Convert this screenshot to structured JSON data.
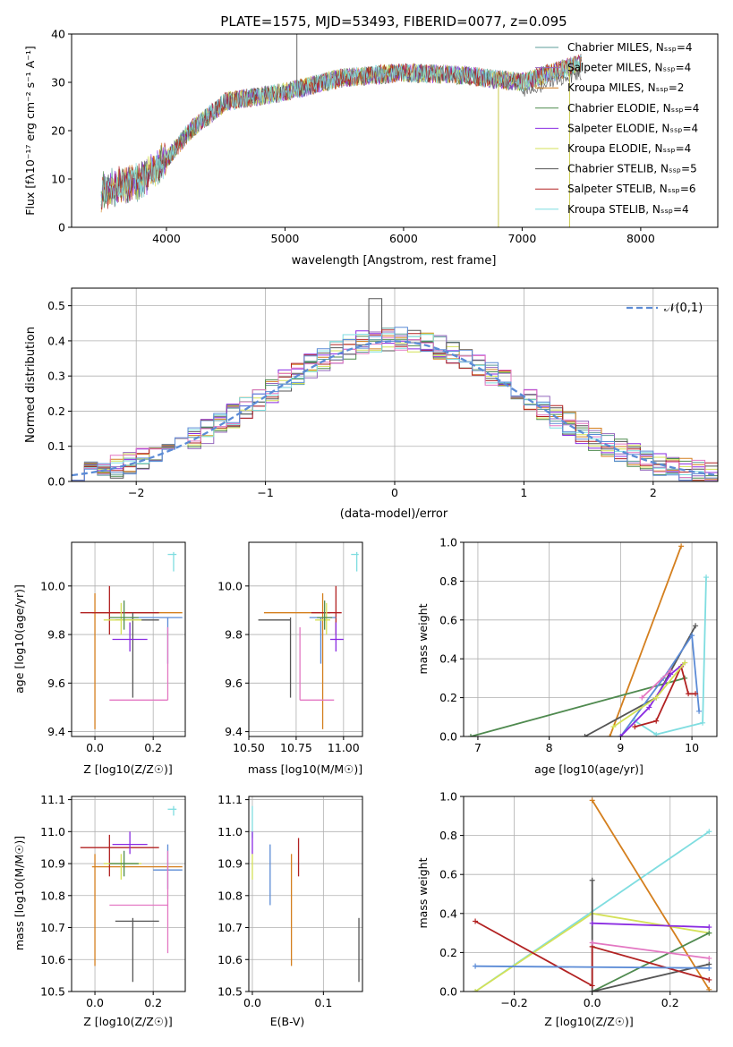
{
  "chart_data": [
    {
      "id": "spectrum",
      "type": "line",
      "title": "PLATE=1575, MJD=53493, FIBERID=0077, z=0.095",
      "xlabel": "wavelength [Angstrom, rest frame]",
      "ylabel": "Flux [f_λ 10^-17 erg cm^-2 s^-1 A^-1]",
      "xlim": [
        3200,
        8650
      ],
      "ylim": [
        0,
        40
      ],
      "xticks": [
        4000,
        5000,
        6000,
        7000,
        8000
      ],
      "yticks": [
        0,
        10,
        20,
        30,
        40
      ],
      "legend_position": "top-right",
      "series": [
        {
          "name": "Chabrier MILES, N_SSP=4",
          "color": "#5e9e9a"
        },
        {
          "name": "Salpeter MILES, N_SSP=4",
          "color": "#9467bd"
        },
        {
          "name": "Kroupa MILES, N_SSP=2",
          "color": "#d47f1e"
        },
        {
          "name": "Chabrier ELODIE, N_SSP=4",
          "color": "#4f8a4f"
        },
        {
          "name": "Salpeter ELODIE, N_SSP=4",
          "color": "#8a2be2"
        },
        {
          "name": "Kroupa ELODIE, N_SSP=4",
          "color": "#d4e157"
        },
        {
          "name": "Chabrier STELIB, N_SSP=5",
          "color": "#555555"
        },
        {
          "name": "Salpeter STELIB, N_SSP=6",
          "color": "#b22222"
        },
        {
          "name": "Kroupa STELIB, N_SSP=4",
          "color": "#7fdde0"
        }
      ],
      "continuum": [
        [
          3450,
          7.5
        ],
        [
          3600,
          8.5
        ],
        [
          3800,
          10
        ],
        [
          4000,
          14
        ],
        [
          4200,
          20
        ],
        [
          4500,
          26
        ],
        [
          5000,
          28
        ],
        [
          5500,
          31
        ],
        [
          6000,
          32
        ],
        [
          6500,
          31.5
        ],
        [
          7000,
          30
        ],
        [
          7500,
          34
        ]
      ],
      "spikes": [
        [
          5100,
          40
        ],
        [
          6800,
          0
        ],
        [
          7400,
          0
        ]
      ]
    },
    {
      "id": "residuals",
      "type": "histogram",
      "xlabel": "(data-model)/error",
      "ylabel": "Normed distribution",
      "xlim": [
        -2.5,
        2.5
      ],
      "ylim": [
        0,
        0.55
      ],
      "xticks": [
        -2,
        -1,
        0,
        1,
        2
      ],
      "yticks": [
        0.0,
        0.1,
        0.2,
        0.3,
        0.4,
        0.5
      ],
      "legend_position": "top-right",
      "legend": "𝒩(0,1)",
      "reference_curve": {
        "type": "normal",
        "mean": 0,
        "sigma": 1,
        "color": "#5b8bd6"
      },
      "bin_width": 0.1,
      "peak": 0.52
    },
    {
      "id": "age-vs-Z",
      "type": "errorbar",
      "xlabel": "Z [log10(Z/Z☉)]",
      "ylabel": "age  [log10(age/yr)]",
      "xlim": [
        -0.08,
        0.31
      ],
      "ylim": [
        9.38,
        10.18
      ],
      "xticks": [
        0.0,
        0.2
      ],
      "yticks": [
        9.4,
        9.6,
        9.8,
        10.0
      ],
      "points": [
        {
          "color": "#7fdde0",
          "x": 0.27,
          "xlo": 0.25,
          "xhi": 0.28,
          "y": 10.13,
          "ylo": 10.06,
          "yhi": 10.14
        },
        {
          "color": "#d47f1e",
          "x": 0.0,
          "xlo": -0.01,
          "xhi": 0.3,
          "y": 9.89,
          "ylo": 9.41,
          "yhi": 9.97
        },
        {
          "color": "#b22222",
          "x": 0.05,
          "xlo": -0.05,
          "xhi": 0.22,
          "y": 9.89,
          "ylo": 9.8,
          "yhi": 10.0
        },
        {
          "color": "#5b8bd6",
          "x": 0.25,
          "xlo": 0.12,
          "xhi": 0.3,
          "y": 9.87,
          "ylo": 9.68,
          "yhi": 9.87
        },
        {
          "color": "#555555",
          "x": 0.13,
          "xlo": 0.07,
          "xhi": 0.22,
          "y": 9.86,
          "ylo": 9.54,
          "yhi": 9.89
        },
        {
          "color": "#d4e157",
          "x": 0.09,
          "xlo": 0.03,
          "xhi": 0.16,
          "y": 9.86,
          "ylo": 9.8,
          "yhi": 9.93
        },
        {
          "color": "#4f8a4f",
          "x": 0.1,
          "xlo": 0.05,
          "xhi": 0.15,
          "y": 9.87,
          "ylo": 9.82,
          "yhi": 9.94
        },
        {
          "color": "#8a2be2",
          "x": 0.12,
          "xlo": 0.06,
          "xhi": 0.18,
          "y": 9.78,
          "ylo": 9.73,
          "yhi": 9.85
        },
        {
          "color": "#e377c2",
          "x": 0.25,
          "xlo": 0.05,
          "xhi": 0.25,
          "y": 9.53,
          "ylo": 9.53,
          "yhi": 9.83
        }
      ]
    },
    {
      "id": "age-vs-mass",
      "type": "errorbar",
      "xlabel": "mass [log10(M/M☉)]",
      "ylabel": "",
      "xlim": [
        10.5,
        11.1
      ],
      "ylim": [
        9.38,
        10.18
      ],
      "xticks": [
        10.5,
        10.75,
        11.0
      ],
      "yticks": [
        9.4,
        9.6,
        9.8,
        10.0
      ],
      "points": [
        {
          "color": "#7fdde0",
          "x": 11.07,
          "xlo": 11.04,
          "xhi": 11.08,
          "y": 10.13,
          "ylo": 10.06,
          "yhi": 10.14
        },
        {
          "color": "#d47f1e",
          "x": 10.89,
          "xlo": 10.58,
          "xhi": 10.93,
          "y": 9.89,
          "ylo": 9.41,
          "yhi": 9.97
        },
        {
          "color": "#b22222",
          "x": 10.96,
          "xlo": 10.83,
          "xhi": 10.99,
          "y": 9.89,
          "ylo": 9.8,
          "yhi": 10.0
        },
        {
          "color": "#5b8bd6",
          "x": 10.88,
          "xlo": 10.82,
          "xhi": 10.96,
          "y": 9.87,
          "ylo": 9.68,
          "yhi": 9.87
        },
        {
          "color": "#555555",
          "x": 10.72,
          "xlo": 10.55,
          "xhi": 10.72,
          "y": 9.86,
          "ylo": 9.54,
          "yhi": 9.87
        },
        {
          "color": "#d4e157",
          "x": 10.91,
          "xlo": 10.85,
          "xhi": 10.93,
          "y": 9.86,
          "ylo": 9.8,
          "yhi": 9.93
        },
        {
          "color": "#4f8a4f",
          "x": 10.9,
          "xlo": 10.86,
          "xhi": 10.94,
          "y": 9.87,
          "ylo": 9.82,
          "yhi": 9.94
        },
        {
          "color": "#8a2be2",
          "x": 10.96,
          "xlo": 10.93,
          "xhi": 11.0,
          "y": 9.78,
          "ylo": 9.73,
          "yhi": 9.85
        },
        {
          "color": "#e377c2",
          "x": 10.77,
          "xlo": 10.77,
          "xhi": 10.95,
          "y": 9.53,
          "ylo": 9.53,
          "yhi": 9.83
        }
      ]
    },
    {
      "id": "weight-vs-age",
      "type": "line",
      "xlabel": "age  [log10(age/yr)]",
      "ylabel": "mass weight",
      "xlim": [
        6.8,
        10.35
      ],
      "ylim": [
        0,
        1.0
      ],
      "xticks": [
        7,
        8,
        9,
        10
      ],
      "yticks": [
        0.0,
        0.2,
        0.4,
        0.6,
        0.8,
        1.0
      ],
      "series": [
        {
          "color": "#d47f1e",
          "x": [
            8.85,
            9.85
          ],
          "y": [
            0.0,
            0.98
          ]
        },
        {
          "color": "#4f8a4f",
          "x": [
            6.9,
            9.9
          ],
          "y": [
            0.0,
            0.3
          ]
        },
        {
          "color": "#555555",
          "x": [
            8.5,
            9.5,
            10.05
          ],
          "y": [
            0.0,
            0.2,
            0.57
          ]
        },
        {
          "color": "#7fdde0",
          "x": [
            9.2,
            9.5,
            10.15,
            10.2
          ],
          "y": [
            0.08,
            0.01,
            0.07,
            0.82
          ]
        },
        {
          "color": "#5b8bd6",
          "x": [
            9.0,
            9.6,
            10.0,
            10.1
          ],
          "y": [
            0.0,
            0.3,
            0.52,
            0.13
          ]
        },
        {
          "color": "#b22222",
          "x": [
            9.2,
            9.5,
            9.85,
            9.95,
            10.05
          ],
          "y": [
            0.05,
            0.08,
            0.36,
            0.22,
            0.22
          ]
        },
        {
          "color": "#8a2be2",
          "x": [
            9.0,
            9.4,
            9.7,
            9.9
          ],
          "y": [
            0.0,
            0.15,
            0.32,
            0.38
          ]
        },
        {
          "color": "#d4e157",
          "x": [
            8.9,
            9.5,
            9.9
          ],
          "y": [
            0.05,
            0.2,
            0.38
          ]
        },
        {
          "color": "#e377c2",
          "x": [
            9.3,
            9.7
          ],
          "y": [
            0.2,
            0.34
          ]
        }
      ]
    },
    {
      "id": "mass-vs-Z",
      "type": "errorbar",
      "xlabel": "Z [log10(Z/Z☉)]",
      "ylabel": "mass [log10(M/M☉)]",
      "xlim": [
        -0.08,
        0.31
      ],
      "ylim": [
        10.5,
        11.11
      ],
      "xticks": [
        0.0,
        0.2
      ],
      "yticks": [
        10.5,
        10.6,
        10.7,
        10.8,
        10.9,
        11.0,
        11.1
      ],
      "points": [
        {
          "color": "#7fdde0",
          "x": 0.27,
          "xlo": 0.25,
          "xhi": 0.28,
          "y": 11.07,
          "ylo": 11.05,
          "yhi": 11.08
        },
        {
          "color": "#d47f1e",
          "x": 0.0,
          "xlo": -0.01,
          "xhi": 0.3,
          "y": 10.89,
          "ylo": 10.58,
          "yhi": 10.93
        },
        {
          "color": "#b22222",
          "x": 0.05,
          "xlo": -0.05,
          "xhi": 0.22,
          "y": 10.95,
          "ylo": 10.86,
          "yhi": 10.99
        },
        {
          "color": "#5b8bd6",
          "x": 0.25,
          "xlo": 0.2,
          "xhi": 0.3,
          "y": 10.88,
          "ylo": 10.82,
          "yhi": 10.96
        },
        {
          "color": "#555555",
          "x": 0.13,
          "xlo": 0.07,
          "xhi": 0.22,
          "y": 10.72,
          "ylo": 10.53,
          "yhi": 10.73
        },
        {
          "color": "#d4e157",
          "x": 0.09,
          "xlo": 0.03,
          "xhi": 0.16,
          "y": 10.9,
          "ylo": 10.85,
          "yhi": 10.93
        },
        {
          "color": "#4f8a4f",
          "x": 0.1,
          "xlo": 0.05,
          "xhi": 0.15,
          "y": 10.9,
          "ylo": 10.86,
          "yhi": 10.94
        },
        {
          "color": "#8a2be2",
          "x": 0.12,
          "xlo": 0.06,
          "xhi": 0.18,
          "y": 10.96,
          "ylo": 10.93,
          "yhi": 11.0
        },
        {
          "color": "#e377c2",
          "x": 0.25,
          "xlo": 0.05,
          "xhi": 0.25,
          "y": 10.77,
          "ylo": 10.62,
          "yhi": 10.94
        }
      ]
    },
    {
      "id": "mass-vs-ebv",
      "type": "errorbar",
      "xlabel": "E(B-V)",
      "ylabel": "",
      "xlim": [
        -0.005,
        0.155
      ],
      "ylim": [
        10.5,
        11.11
      ],
      "xticks": [
        0.0,
        0.1
      ],
      "yticks": [
        10.5,
        10.6,
        10.7,
        10.8,
        10.9,
        11.0,
        11.1
      ],
      "points": [
        {
          "color": "#7fdde0",
          "x": 0.0,
          "ylo": 10.98,
          "yhi": 11.08
        },
        {
          "color": "#8a2be2",
          "x": 0.0,
          "ylo": 10.93,
          "yhi": 11.0
        },
        {
          "color": "#d4e157",
          "x": 0.0,
          "ylo": 10.85,
          "yhi": 10.93
        },
        {
          "color": "#5b8bd6",
          "x": 0.025,
          "ylo": 10.77,
          "yhi": 10.96
        },
        {
          "color": "#d47f1e",
          "x": 0.055,
          "ylo": 10.58,
          "yhi": 10.93
        },
        {
          "color": "#b22222",
          "x": 0.065,
          "ylo": 10.86,
          "yhi": 10.98
        },
        {
          "color": "#555555",
          "x": 0.15,
          "ylo": 10.53,
          "yhi": 10.73
        }
      ]
    },
    {
      "id": "weight-vs-Z",
      "type": "line",
      "xlabel": "Z [log10(Z/Z☉)]",
      "ylabel": "mass weight",
      "xlim": [
        -0.33,
        0.32
      ],
      "ylim": [
        0,
        1.0
      ],
      "xticks": [
        -0.2,
        0.0,
        0.2
      ],
      "yticks": [
        0.0,
        0.2,
        0.4,
        0.6,
        0.8,
        1.0
      ],
      "series": [
        {
          "color": "#7fdde0",
          "x": [
            -0.3,
            0.3
          ],
          "y": [
            0.0,
            0.82
          ]
        },
        {
          "color": "#d4e157",
          "x": [
            -0.3,
            0.0,
            0.3
          ],
          "y": [
            0.0,
            0.4,
            0.3
          ]
        },
        {
          "color": "#d47f1e",
          "x": [
            0.0,
            0.3
          ],
          "y": [
            0.98,
            0.01
          ]
        },
        {
          "color": "#4f8a4f",
          "x": [
            0.0,
            0.3
          ],
          "y": [
            0.0,
            0.3
          ]
        },
        {
          "color": "#555555",
          "x": [
            0.0,
            0.0,
            0.3
          ],
          "y": [
            0.57,
            0.0,
            0.14
          ]
        },
        {
          "color": "#b22222",
          "x": [
            -0.3,
            0.0,
            0.0,
            0.3
          ],
          "y": [
            0.36,
            0.03,
            0.23,
            0.06
          ]
        },
        {
          "color": "#5b8bd6",
          "x": [
            -0.3,
            0.3
          ],
          "y": [
            0.13,
            0.12
          ]
        },
        {
          "color": "#8a2be2",
          "x": [
            0.0,
            0.3
          ],
          "y": [
            0.35,
            0.33
          ]
        },
        {
          "color": "#e377c2",
          "x": [
            0.0,
            0.3
          ],
          "y": [
            0.25,
            0.17
          ]
        }
      ]
    }
  ]
}
